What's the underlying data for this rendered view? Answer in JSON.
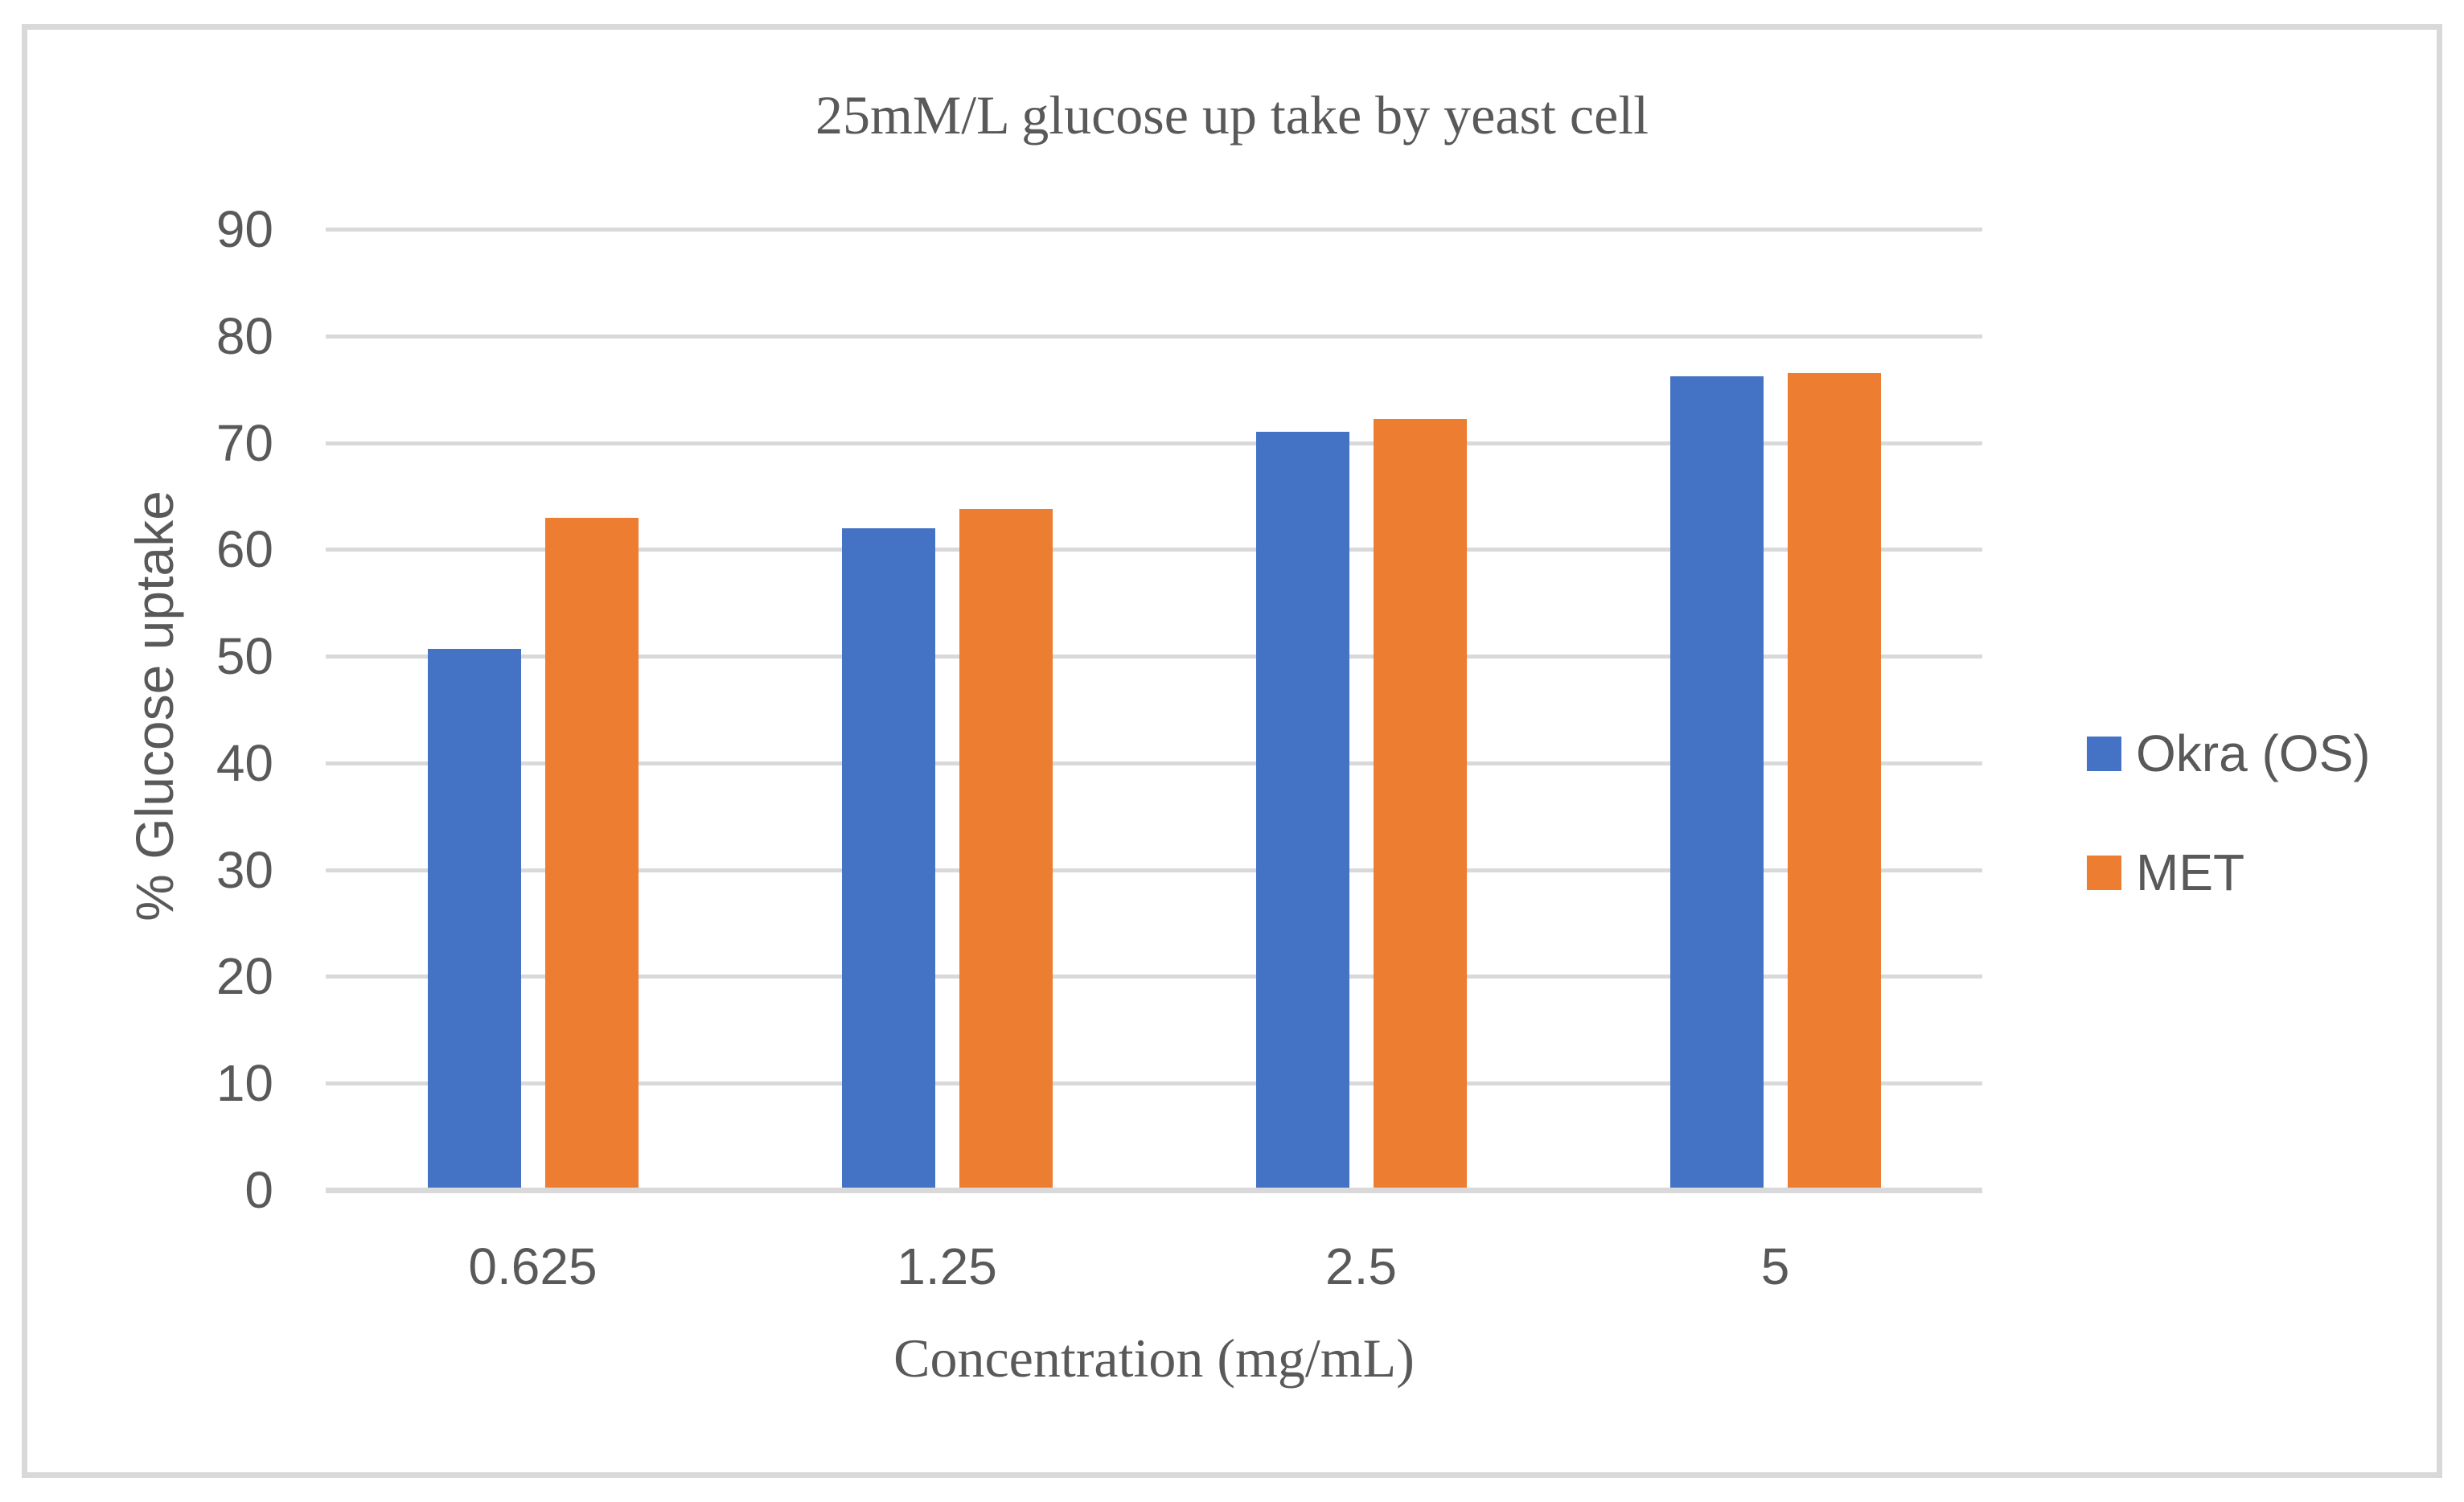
{
  "chart_data": {
    "type": "bar",
    "title": "25mM/L glucose up take by yeast cell",
    "xlabel": "Concentration (mg/mL)",
    "ylabel": "% Glucose uptake",
    "categories": [
      "0.625",
      "1.25",
      "2.5",
      "5"
    ],
    "series": [
      {
        "name": "Okra (OS)",
        "color": "#4472C4",
        "values": [
          50.7,
          62,
          71,
          76.2
        ]
      },
      {
        "name": "MET",
        "color": "#ED7D31",
        "values": [
          63,
          63.8,
          72.2,
          76.5
        ]
      }
    ],
    "ylim": [
      0,
      90
    ],
    "yticks": [
      0,
      10,
      20,
      30,
      40,
      50,
      60,
      70,
      80,
      90
    ],
    "grid": "horizontal",
    "gridline_color": "#D9D9D9",
    "legend_position": "right",
    "text_color": "#595959"
  }
}
